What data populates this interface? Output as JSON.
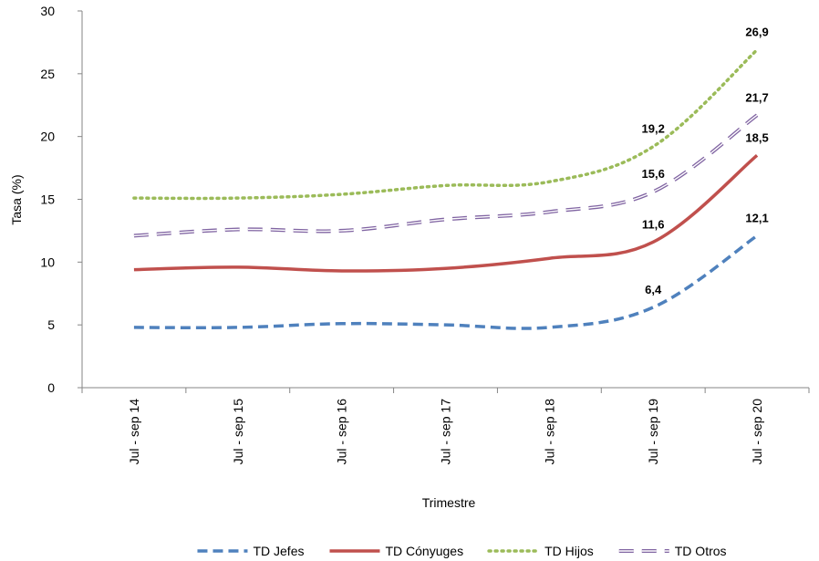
{
  "chart_data": {
    "type": "line",
    "ylabel": "Tasa (%)",
    "xlabel": "Trimestre",
    "ylim": [
      0,
      30
    ],
    "yticks": [
      "0",
      "5",
      "10",
      "15",
      "20",
      "25",
      "30"
    ],
    "categories": [
      "Jul - sep 14",
      "Jul - sep 15",
      "Jul - sep 16",
      "Jul - sep 17",
      "Jul - sep 18",
      "Jul - sep 19",
      "Jul - sep 20"
    ],
    "legend_position": "bottom",
    "grid": false,
    "series": [
      {
        "name": "TD Jefes",
        "color": "#4F81BD",
        "style": "dashed",
        "values": [
          4.8,
          4.8,
          5.1,
          5.0,
          4.8,
          6.4,
          12.1
        ],
        "labels": [
          "",
          "",
          "",
          "",
          "",
          "6,4",
          "12,1"
        ]
      },
      {
        "name": "TD Cónyuges",
        "color": "#C0504D",
        "style": "solid",
        "values": [
          9.4,
          9.6,
          9.3,
          9.5,
          10.3,
          11.6,
          18.5
        ],
        "labels": [
          "",
          "",
          "",
          "",
          "",
          "11,6",
          "18,5"
        ]
      },
      {
        "name": "TD Hijos",
        "color": "#9BBB59",
        "style": "dotted",
        "values": [
          15.1,
          15.1,
          15.4,
          16.1,
          16.4,
          19.2,
          26.9
        ],
        "labels": [
          "",
          "",
          "",
          "",
          "",
          "19,2",
          "26,9"
        ]
      },
      {
        "name": "TD Otros",
        "color": "#8064A2",
        "style": "double-dashed",
        "values": [
          12.1,
          12.6,
          12.5,
          13.4,
          14.0,
          15.6,
          21.7
        ],
        "labels": [
          "",
          "",
          "",
          "",
          "",
          "15,6",
          "21,7"
        ]
      }
    ]
  }
}
